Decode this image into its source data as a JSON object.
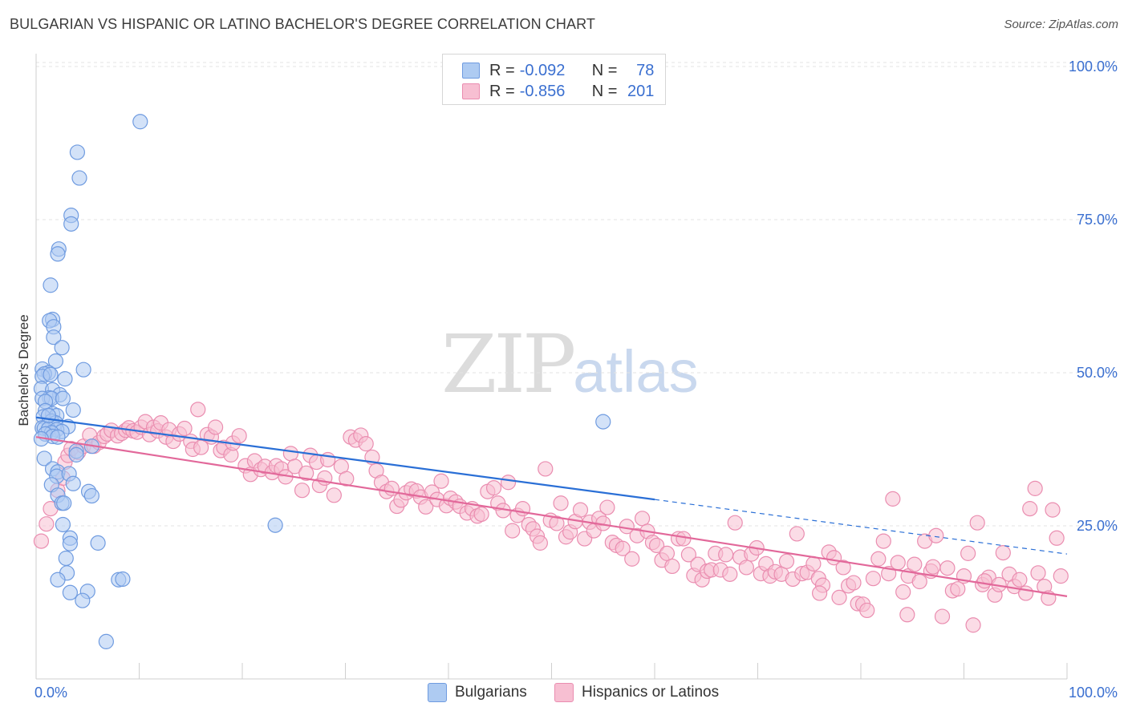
{
  "title": "BULGARIAN VS HISPANIC OR LATINO BACHELOR'S DEGREE CORRELATION CHART",
  "source": "Source: ZipAtlas.com",
  "watermark": {
    "zip": "ZIP",
    "atlas": "atlas"
  },
  "legend": {
    "r_label": "R =",
    "n_label": "N =",
    "rows": [
      {
        "r": "-0.092",
        "n": "78"
      },
      {
        "r": "-0.856",
        "n": "201"
      }
    ]
  },
  "colors": {
    "blue_fill": "#aecbf2",
    "blue_stroke": "#6f9be0",
    "blue_line": "#2a6fd6",
    "pink_fill": "#f7bfd2",
    "pink_stroke": "#ea8db0",
    "pink_line": "#e2689a",
    "tick_label": "#3a6fd0",
    "grid": "#e3e3e3"
  },
  "chart_data": {
    "type": "scatter",
    "title": "BULGARIAN VS HISPANIC OR LATINO BACHELOR'S DEGREE CORRELATION CHART",
    "xlabel": "",
    "ylabel": "Bachelor's Degree",
    "xlim": [
      0,
      100
    ],
    "ylim": [
      0,
      102
    ],
    "x_tick_labels": [
      "0.0%",
      "100.0%"
    ],
    "y_ticks": [
      25,
      50,
      75,
      100
    ],
    "y_tick_labels": [
      "25.0%",
      "50.0%",
      "75.0%",
      "100.0%"
    ],
    "series": [
      {
        "name": "Bulgarians",
        "r": -0.092,
        "n": 78,
        "trend": {
          "solid": [
            [
              0,
              42.7
            ],
            [
              60,
              29.3
            ]
          ],
          "dashed": [
            [
              60,
              29.3
            ],
            [
              100,
              20.4
            ]
          ]
        },
        "points": [
          [
            10.1,
            91.0
          ],
          [
            4.0,
            86.0
          ],
          [
            4.2,
            81.8
          ],
          [
            3.4,
            75.7
          ],
          [
            3.4,
            74.3
          ],
          [
            2.2,
            70.2
          ],
          [
            2.1,
            69.4
          ],
          [
            1.4,
            64.3
          ],
          [
            1.6,
            58.7
          ],
          [
            1.3,
            58.5
          ],
          [
            1.7,
            57.5
          ],
          [
            1.7,
            55.8
          ],
          [
            2.5,
            54.1
          ],
          [
            1.9,
            51.9
          ],
          [
            0.6,
            50.6
          ],
          [
            4.6,
            50.5
          ],
          [
            1.2,
            50.0
          ],
          [
            0.8,
            49.8
          ],
          [
            0.6,
            49.4
          ],
          [
            2.8,
            49.0
          ],
          [
            0.5,
            47.4
          ],
          [
            1.6,
            47.2
          ],
          [
            2.3,
            46.4
          ],
          [
            1.3,
            45.9
          ],
          [
            0.6,
            45.8
          ],
          [
            1.5,
            45.8
          ],
          [
            0.9,
            45.3
          ],
          [
            3.6,
            43.9
          ],
          [
            0.9,
            43.8
          ],
          [
            1.6,
            43.3
          ],
          [
            2.0,
            43.0
          ],
          [
            0.7,
            42.8
          ],
          [
            1.5,
            42.1
          ],
          [
            1.9,
            41.8
          ],
          [
            3.1,
            41.2
          ],
          [
            0.6,
            41.0
          ],
          [
            0.8,
            40.9
          ],
          [
            1.2,
            40.8
          ],
          [
            2.0,
            40.7
          ],
          [
            2.5,
            40.4
          ],
          [
            1.5,
            40.2
          ],
          [
            0.9,
            40.0
          ],
          [
            1.6,
            39.6
          ],
          [
            2.1,
            39.5
          ],
          [
            55.0,
            42.0
          ],
          [
            3.9,
            37.2
          ],
          [
            5.4,
            38.0
          ],
          [
            3.9,
            36.6
          ],
          [
            0.8,
            36.0
          ],
          [
            1.6,
            34.3
          ],
          [
            2.1,
            33.8
          ],
          [
            2.0,
            33.1
          ],
          [
            3.2,
            33.5
          ],
          [
            1.5,
            31.7
          ],
          [
            3.6,
            31.9
          ],
          [
            2.1,
            30.0
          ],
          [
            5.1,
            30.6
          ],
          [
            5.4,
            29.9
          ],
          [
            2.5,
            28.7
          ],
          [
            2.7,
            28.7
          ],
          [
            23.2,
            25.1
          ],
          [
            2.6,
            25.2
          ],
          [
            3.3,
            23.0
          ],
          [
            3.3,
            22.1
          ],
          [
            6.0,
            22.2
          ],
          [
            2.9,
            19.7
          ],
          [
            3.0,
            17.3
          ],
          [
            2.1,
            16.2
          ],
          [
            8.0,
            16.2
          ],
          [
            8.4,
            16.3
          ],
          [
            3.3,
            14.1
          ],
          [
            5.0,
            14.3
          ],
          [
            4.5,
            12.8
          ],
          [
            6.8,
            6.1
          ],
          [
            0.5,
            39.2
          ],
          [
            1.2,
            43.0
          ],
          [
            2.6,
            45.8
          ],
          [
            1.4,
            49.7
          ]
        ]
      },
      {
        "name": "Hispanics or Latinos",
        "r": -0.856,
        "n": 201,
        "trend": {
          "solid": [
            [
              0,
              39.5
            ],
            [
              100,
              13.5
            ]
          ]
        },
        "points": [
          [
            0.5,
            22.5
          ],
          [
            1.0,
            25.3
          ],
          [
            1.4,
            27.8
          ],
          [
            2.1,
            30.8
          ],
          [
            2.6,
            32.8
          ],
          [
            2.8,
            35.4
          ],
          [
            3.1,
            36.5
          ],
          [
            3.4,
            37.6
          ],
          [
            4.1,
            37.0
          ],
          [
            4.6,
            38.0
          ],
          [
            5.2,
            39.8
          ],
          [
            5.6,
            38.0
          ],
          [
            6.1,
            38.6
          ],
          [
            6.6,
            39.6
          ],
          [
            6.9,
            40.0
          ],
          [
            7.3,
            40.6
          ],
          [
            7.9,
            39.7
          ],
          [
            8.3,
            40.1
          ],
          [
            8.7,
            40.6
          ],
          [
            9.0,
            41.0
          ],
          [
            9.4,
            40.5
          ],
          [
            9.8,
            40.3
          ],
          [
            10.2,
            41.1
          ],
          [
            10.6,
            42.0
          ],
          [
            11.0,
            39.9
          ],
          [
            11.4,
            41.1
          ],
          [
            11.8,
            40.5
          ],
          [
            12.1,
            41.8
          ],
          [
            12.6,
            39.5
          ],
          [
            12.9,
            40.7
          ],
          [
            13.3,
            38.8
          ],
          [
            13.9,
            40.0
          ],
          [
            14.4,
            40.9
          ],
          [
            15.0,
            38.8
          ],
          [
            15.2,
            37.5
          ],
          [
            15.7,
            44.0
          ],
          [
            16.0,
            37.8
          ],
          [
            16.6,
            39.9
          ],
          [
            17.0,
            39.5
          ],
          [
            17.4,
            41.1
          ],
          [
            17.9,
            37.3
          ],
          [
            18.2,
            37.8
          ],
          [
            18.9,
            36.6
          ],
          [
            19.1,
            38.5
          ],
          [
            19.7,
            39.7
          ],
          [
            20.3,
            34.8
          ],
          [
            20.8,
            33.4
          ],
          [
            21.2,
            35.6
          ],
          [
            21.8,
            34.2
          ],
          [
            22.2,
            34.7
          ],
          [
            22.9,
            33.7
          ],
          [
            23.3,
            34.8
          ],
          [
            23.8,
            34.3
          ],
          [
            24.2,
            33.0
          ],
          [
            24.7,
            36.8
          ],
          [
            25.1,
            34.7
          ],
          [
            25.8,
            30.8
          ],
          [
            26.2,
            33.6
          ],
          [
            26.6,
            36.5
          ],
          [
            27.2,
            35.4
          ],
          [
            27.5,
            31.6
          ],
          [
            28.0,
            32.8
          ],
          [
            28.3,
            35.8
          ],
          [
            28.9,
            30.0
          ],
          [
            29.6,
            34.7
          ],
          [
            30.1,
            32.7
          ],
          [
            30.5,
            39.5
          ],
          [
            31.0,
            39.0
          ],
          [
            31.5,
            39.8
          ],
          [
            32.0,
            38.4
          ],
          [
            32.6,
            36.2
          ],
          [
            33.0,
            34.0
          ],
          [
            33.5,
            32.1
          ],
          [
            34.0,
            30.6
          ],
          [
            34.5,
            31.1
          ],
          [
            35.0,
            28.2
          ],
          [
            35.4,
            29.2
          ],
          [
            35.9,
            30.4
          ],
          [
            36.4,
            31.0
          ],
          [
            36.9,
            30.7
          ],
          [
            37.3,
            29.7
          ],
          [
            37.8,
            28.1
          ],
          [
            38.4,
            30.5
          ],
          [
            38.9,
            29.3
          ],
          [
            39.3,
            32.3
          ],
          [
            39.8,
            28.3
          ],
          [
            40.2,
            29.5
          ],
          [
            40.7,
            28.9
          ],
          [
            41.1,
            28.2
          ],
          [
            41.8,
            27.1
          ],
          [
            42.3,
            27.8
          ],
          [
            42.8,
            26.6
          ],
          [
            43.2,
            26.9
          ],
          [
            43.8,
            30.6
          ],
          [
            44.4,
            31.2
          ],
          [
            44.8,
            28.7
          ],
          [
            45.3,
            27.5
          ],
          [
            45.8,
            32.1
          ],
          [
            46.2,
            24.2
          ],
          [
            46.7,
            26.7
          ],
          [
            47.2,
            27.8
          ],
          [
            47.8,
            25.2
          ],
          [
            48.2,
            24.5
          ],
          [
            48.6,
            23.3
          ],
          [
            48.9,
            22.2
          ],
          [
            49.4,
            34.3
          ],
          [
            49.9,
            25.9
          ],
          [
            50.5,
            25.4
          ],
          [
            50.9,
            28.7
          ],
          [
            51.4,
            23.2
          ],
          [
            51.8,
            24.0
          ],
          [
            52.3,
            25.7
          ],
          [
            52.8,
            27.6
          ],
          [
            53.2,
            22.9
          ],
          [
            53.7,
            25.6
          ],
          [
            54.1,
            24.2
          ],
          [
            54.6,
            26.2
          ],
          [
            55.0,
            25.4
          ],
          [
            55.4,
            28.0
          ],
          [
            55.9,
            22.3
          ],
          [
            56.3,
            21.8
          ],
          [
            56.9,
            21.3
          ],
          [
            57.3,
            24.9
          ],
          [
            57.8,
            19.6
          ],
          [
            58.3,
            23.4
          ],
          [
            58.8,
            26.2
          ],
          [
            59.3,
            24.1
          ],
          [
            59.8,
            22.3
          ],
          [
            60.2,
            21.8
          ],
          [
            60.7,
            19.4
          ],
          [
            61.2,
            20.5
          ],
          [
            61.7,
            18.4
          ],
          [
            62.3,
            22.9
          ],
          [
            62.8,
            22.9
          ],
          [
            63.3,
            20.3
          ],
          [
            63.8,
            16.9
          ],
          [
            64.2,
            18.7
          ],
          [
            64.6,
            16.2
          ],
          [
            65.1,
            17.6
          ],
          [
            65.5,
            17.8
          ],
          [
            65.9,
            20.5
          ],
          [
            66.4,
            17.8
          ],
          [
            66.9,
            20.3
          ],
          [
            67.3,
            17.1
          ],
          [
            67.8,
            25.5
          ],
          [
            68.3,
            19.9
          ],
          [
            68.9,
            18.2
          ],
          [
            69.4,
            20.4
          ],
          [
            69.9,
            21.4
          ],
          [
            70.3,
            17.2
          ],
          [
            70.8,
            18.8
          ],
          [
            71.2,
            16.8
          ],
          [
            71.7,
            17.5
          ],
          [
            72.3,
            17.1
          ],
          [
            72.8,
            19.2
          ],
          [
            73.4,
            16.3
          ],
          [
            73.8,
            23.7
          ],
          [
            74.3,
            17.2
          ],
          [
            74.8,
            17.4
          ],
          [
            75.4,
            18.8
          ],
          [
            75.9,
            16.4
          ],
          [
            76.3,
            15.3
          ],
          [
            76.9,
            20.7
          ],
          [
            77.4,
            19.8
          ],
          [
            77.9,
            13.3
          ],
          [
            78.3,
            18.2
          ],
          [
            78.8,
            15.2
          ],
          [
            79.3,
            15.7
          ],
          [
            79.7,
            12.3
          ],
          [
            80.2,
            12.2
          ],
          [
            80.6,
            11.2
          ],
          [
            81.2,
            16.4
          ],
          [
            81.7,
            19.6
          ],
          [
            82.2,
            22.5
          ],
          [
            82.7,
            17.2
          ],
          [
            83.1,
            29.4
          ],
          [
            83.6,
            19.0
          ],
          [
            84.1,
            14.2
          ],
          [
            84.6,
            16.8
          ],
          [
            85.2,
            18.7
          ],
          [
            85.7,
            15.9
          ],
          [
            86.2,
            22.5
          ],
          [
            86.8,
            17.6
          ],
          [
            87.3,
            23.4
          ],
          [
            87.9,
            10.2
          ],
          [
            88.4,
            18.1
          ],
          [
            88.9,
            14.4
          ],
          [
            89.4,
            14.7
          ],
          [
            90.0,
            16.8
          ],
          [
            90.4,
            20.5
          ],
          [
            90.9,
            8.8
          ],
          [
            91.3,
            25.5
          ],
          [
            91.8,
            15.4
          ],
          [
            92.4,
            16.6
          ],
          [
            93.0,
            13.7
          ],
          [
            93.4,
            15.4
          ],
          [
            93.8,
            20.6
          ],
          [
            94.4,
            17.1
          ],
          [
            94.9,
            15.1
          ],
          [
            95.4,
            16.2
          ],
          [
            96.0,
            14.0
          ],
          [
            96.4,
            27.8
          ],
          [
            96.9,
            31.1
          ],
          [
            97.2,
            17.3
          ],
          [
            97.8,
            15.1
          ],
          [
            98.2,
            13.2
          ],
          [
            98.6,
            27.6
          ],
          [
            99.4,
            16.8
          ],
          [
            99.0,
            23.0
          ],
          [
            84.5,
            10.5
          ],
          [
            87.0,
            18.3
          ],
          [
            76.0,
            14.0
          ],
          [
            92.0,
            16.0
          ]
        ]
      }
    ]
  },
  "bottom_legend": [
    {
      "label": "Bulgarians"
    },
    {
      "label": "Hispanics or Latinos"
    }
  ]
}
